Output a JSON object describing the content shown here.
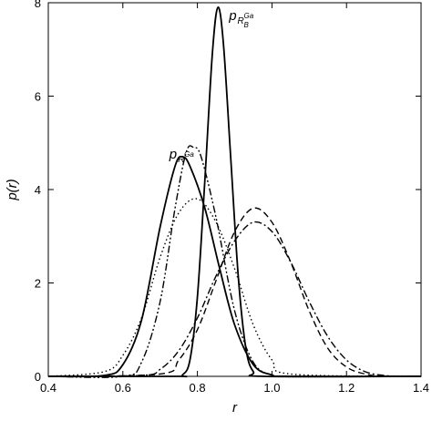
{
  "chart_data": {
    "type": "line",
    "title": "",
    "xlabel": "r",
    "ylabel": "p(r)",
    "xlim": [
      0.4,
      1.4
    ],
    "ylim": [
      0,
      8
    ],
    "grid": false,
    "legend": "none",
    "x_ticks": [
      "0.4",
      "0.6",
      "0.8",
      "1.0",
      "1.2",
      "1.4"
    ],
    "y_ticks": [
      "0",
      "2",
      "4",
      "6",
      "8"
    ],
    "series": [
      {
        "style": "solid",
        "x": [
          0.55,
          0.6,
          0.65,
          0.7,
          0.74,
          0.76,
          0.78,
          0.82,
          0.86,
          0.9,
          0.95,
          1.0,
          1.05
        ],
        "y": [
          0.02,
          0.25,
          1.2,
          3.2,
          4.5,
          4.7,
          4.5,
          3.6,
          2.3,
          1.1,
          0.25,
          0.03,
          0.0
        ]
      },
      {
        "style": "solid",
        "x": [
          0.74,
          0.76,
          0.78,
          0.8,
          0.82,
          0.84,
          0.855,
          0.87,
          0.89,
          0.91,
          0.93,
          0.95,
          0.98
        ],
        "y": [
          0.0,
          0.03,
          0.35,
          1.7,
          4.2,
          6.9,
          7.9,
          7.1,
          4.6,
          2.1,
          0.6,
          0.1,
          0.0
        ]
      },
      {
        "style": "dash-dot-dot",
        "x": [
          0.6,
          0.65,
          0.7,
          0.74,
          0.77,
          0.79,
          0.81,
          0.85,
          0.9,
          0.95,
          1.0,
          1.05
        ],
        "y": [
          0.0,
          0.3,
          1.6,
          3.6,
          4.8,
          4.9,
          4.7,
          3.4,
          1.4,
          0.3,
          0.03,
          0.0
        ]
      },
      {
        "style": "dotted",
        "x": [
          0.55,
          0.6,
          0.65,
          0.7,
          0.75,
          0.8,
          0.85,
          0.9,
          0.95,
          1.0,
          1.05
        ],
        "y": [
          0.1,
          0.45,
          1.25,
          2.55,
          3.5,
          3.8,
          3.3,
          2.3,
          1.1,
          0.35,
          0.05
        ]
      },
      {
        "style": "dashed",
        "x": [
          0.7,
          0.75,
          0.8,
          0.85,
          0.9,
          0.95,
          1.0,
          1.05,
          1.1,
          1.15,
          1.2,
          1.25,
          1.3
        ],
        "y": [
          0.05,
          0.35,
          1.0,
          2.05,
          3.1,
          3.6,
          3.3,
          2.45,
          1.4,
          0.6,
          0.2,
          0.05,
          0.0
        ]
      },
      {
        "style": "dash-dot",
        "x": [
          0.65,
          0.7,
          0.75,
          0.8,
          0.85,
          0.9,
          0.95,
          1.0,
          1.05,
          1.1,
          1.15,
          1.2,
          1.25,
          1.3,
          1.35
        ],
        "y": [
          0.02,
          0.15,
          0.55,
          1.25,
          2.15,
          2.9,
          3.3,
          3.1,
          2.45,
          1.6,
          0.85,
          0.35,
          0.1,
          0.02,
          0.0
        ]
      }
    ],
    "annotations": [
      {
        "main": "p",
        "sub": "R",
        "sup": "Ga",
        "x": 0.745,
        "y": 4.66
      },
      {
        "main": "p",
        "sub": "R",
        "subsub": "B",
        "sup": "Ga",
        "x": 0.905,
        "y": 7.63
      }
    ]
  }
}
